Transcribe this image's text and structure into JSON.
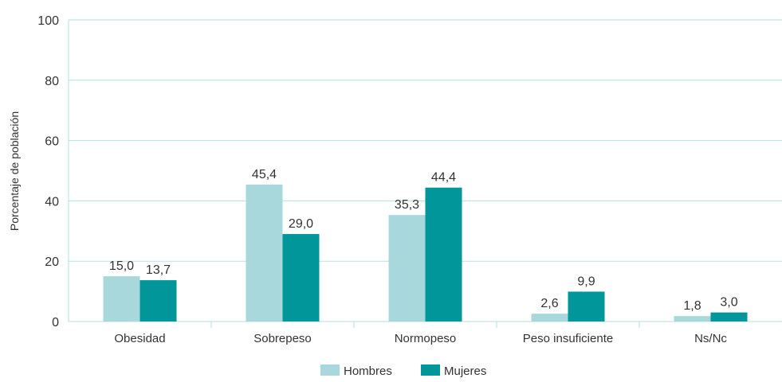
{
  "chart_data": {
    "type": "bar",
    "title": "",
    "xlabel": "",
    "ylabel": "Porcentaje de población",
    "ylim": [
      0,
      100
    ],
    "yticks": [
      0,
      20,
      40,
      60,
      80,
      100
    ],
    "grid": true,
    "legend_position": "bottom",
    "categories": [
      "Obesidad",
      "Sobrepeso",
      "Normopeso",
      "Peso insuficiente",
      "Ns/Nc"
    ],
    "series": [
      {
        "name": "Hombres",
        "color": "#a8d8dc",
        "values": [
          15.0,
          45.4,
          35.3,
          2.6,
          1.8
        ],
        "labels": [
          "15,0",
          "45,4",
          "35,3",
          "2,6",
          "1,8"
        ]
      },
      {
        "name": "Mujeres",
        "color": "#00969a",
        "values": [
          13.7,
          29.0,
          44.4,
          9.9,
          3.0
        ],
        "labels": [
          "13,7",
          "29,0",
          "44,4",
          "9,9",
          "3,0"
        ]
      }
    ]
  }
}
